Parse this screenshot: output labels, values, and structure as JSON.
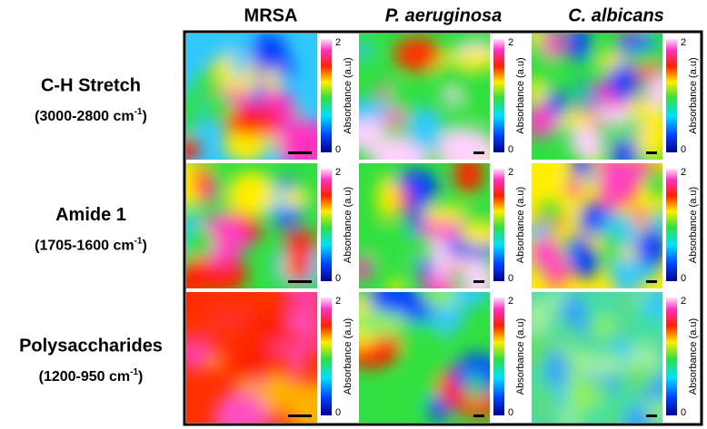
{
  "columns": [
    "MRSA",
    "P. aeruginosa",
    "C. albicans"
  ],
  "rows": [
    {
      "name": "C-H Stretch",
      "range": "(3000-2800 cm",
      "exponent": "-1",
      "range_end": ")"
    },
    {
      "name": "Amide 1",
      "range": "(1705-1600 cm",
      "exponent": "-1",
      "range_end": ")"
    },
    {
      "name": "Polysaccharides",
      "range": "(1200-950 cm",
      "exponent": "-1",
      "range_end": ")"
    }
  ],
  "colorbar": {
    "max": 2,
    "min": 0,
    "label": "Absorbance (a.u)"
  }
}
